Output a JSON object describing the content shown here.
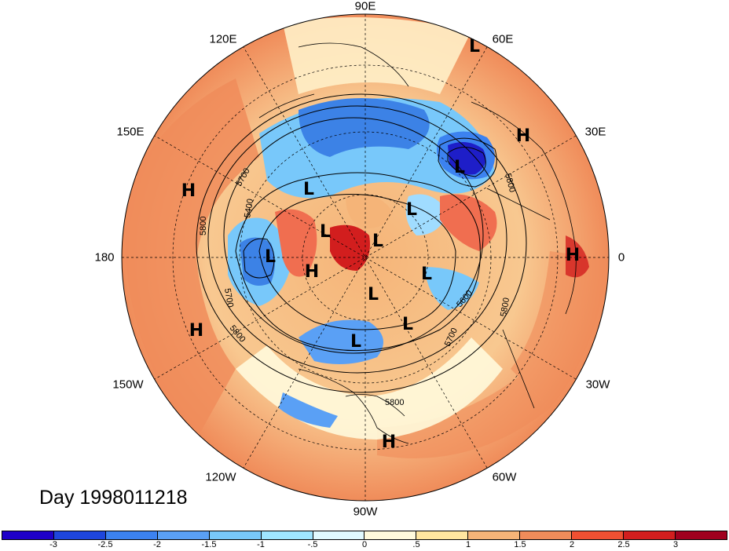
{
  "map": {
    "title": "Day 1998011218",
    "longitude_labels": [
      "90E",
      "60E",
      "30E",
      "0",
      "30W",
      "60W",
      "90W",
      "120W",
      "150W",
      "180",
      "150E",
      "120E"
    ],
    "contour_labels": [
      "5800",
      "5700",
      "5400",
      "5800",
      "5700",
      "5800",
      "5800",
      "5600",
      "5700",
      "5800",
      "5800",
      "5800"
    ],
    "pressure_centers": [
      "L",
      "L",
      "H",
      "L",
      "H",
      "L",
      "L",
      "L",
      "H",
      "L",
      "L",
      "L",
      "L",
      "L",
      "L",
      "H",
      "H",
      "H"
    ],
    "colors": {
      "cold_strong": "#1e1ec8",
      "cold": "#3c82e6",
      "cold_light": "#a0dcff",
      "neutral": "#fffacd",
      "warm_light": "#f5b478",
      "warm": "#f06e50",
      "warm_strong": "#d21e1e",
      "land_outline": "#000000"
    }
  },
  "colorbar": {
    "tick_labels": [
      "-3",
      "-2.5",
      "-2",
      "-1.5",
      "-1",
      "-.5",
      "0",
      ".5",
      "1",
      "1.5",
      "2",
      "2.5",
      "3"
    ],
    "colors": [
      "#1e00c8",
      "#1e46dc",
      "#3c82f0",
      "#5aa0f5",
      "#78c8fa",
      "#a0e6ff",
      "#e1faff",
      "#fffadc",
      "#ffe6a0",
      "#f5b478",
      "#f08c5a",
      "#f05032",
      "#d21e1e",
      "#a0001e"
    ]
  }
}
